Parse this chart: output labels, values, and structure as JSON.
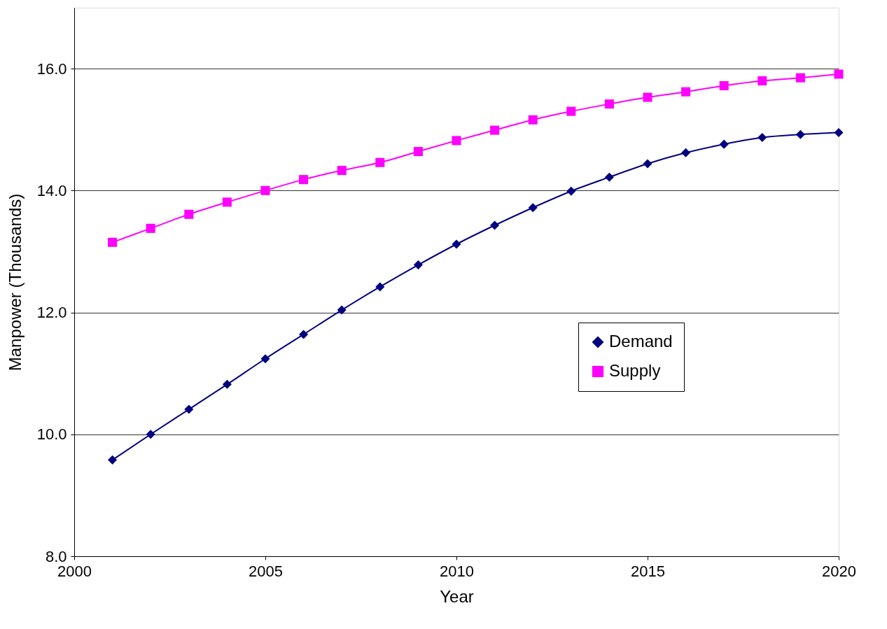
{
  "chart_data": {
    "type": "line",
    "xlabel": "Year",
    "ylabel": "Manpower (Thousands)",
    "x": [
      2001,
      2002,
      2003,
      2004,
      2005,
      2006,
      2007,
      2008,
      2009,
      2010,
      2011,
      2012,
      2013,
      2014,
      2015,
      2016,
      2017,
      2018,
      2019,
      2020
    ],
    "series": [
      {
        "name": "Demand",
        "color": "#000080",
        "marker": "diamond",
        "values": [
          9.58,
          10.0,
          10.41,
          10.82,
          11.24,
          11.64,
          12.04,
          12.42,
          12.78,
          13.12,
          13.43,
          13.72,
          13.99,
          14.22,
          14.44,
          14.62,
          14.76,
          14.87,
          14.92,
          14.95
        ]
      },
      {
        "name": "Supply",
        "color": "#ff00ff",
        "marker": "square",
        "values": [
          13.15,
          13.38,
          13.61,
          13.81,
          14.0,
          14.18,
          14.33,
          14.46,
          14.64,
          14.82,
          14.99,
          15.16,
          15.3,
          15.42,
          15.53,
          15.62,
          15.72,
          15.8,
          15.85,
          15.91
        ]
      }
    ],
    "xlim": [
      2000,
      2020
    ],
    "xticks": [
      2000,
      2005,
      2010,
      2015,
      2020
    ],
    "ylim": [
      8,
      17
    ],
    "yticks": [
      {
        "value": 8,
        "label": "8.0"
      },
      {
        "value": 10,
        "label": "10.0"
      },
      {
        "value": 12,
        "label": "12.0"
      },
      {
        "value": 14,
        "label": "14.0"
      },
      {
        "value": 16,
        "label": "16.0"
      }
    ],
    "grid": "y",
    "legend": "right",
    "line_style": "solid"
  }
}
